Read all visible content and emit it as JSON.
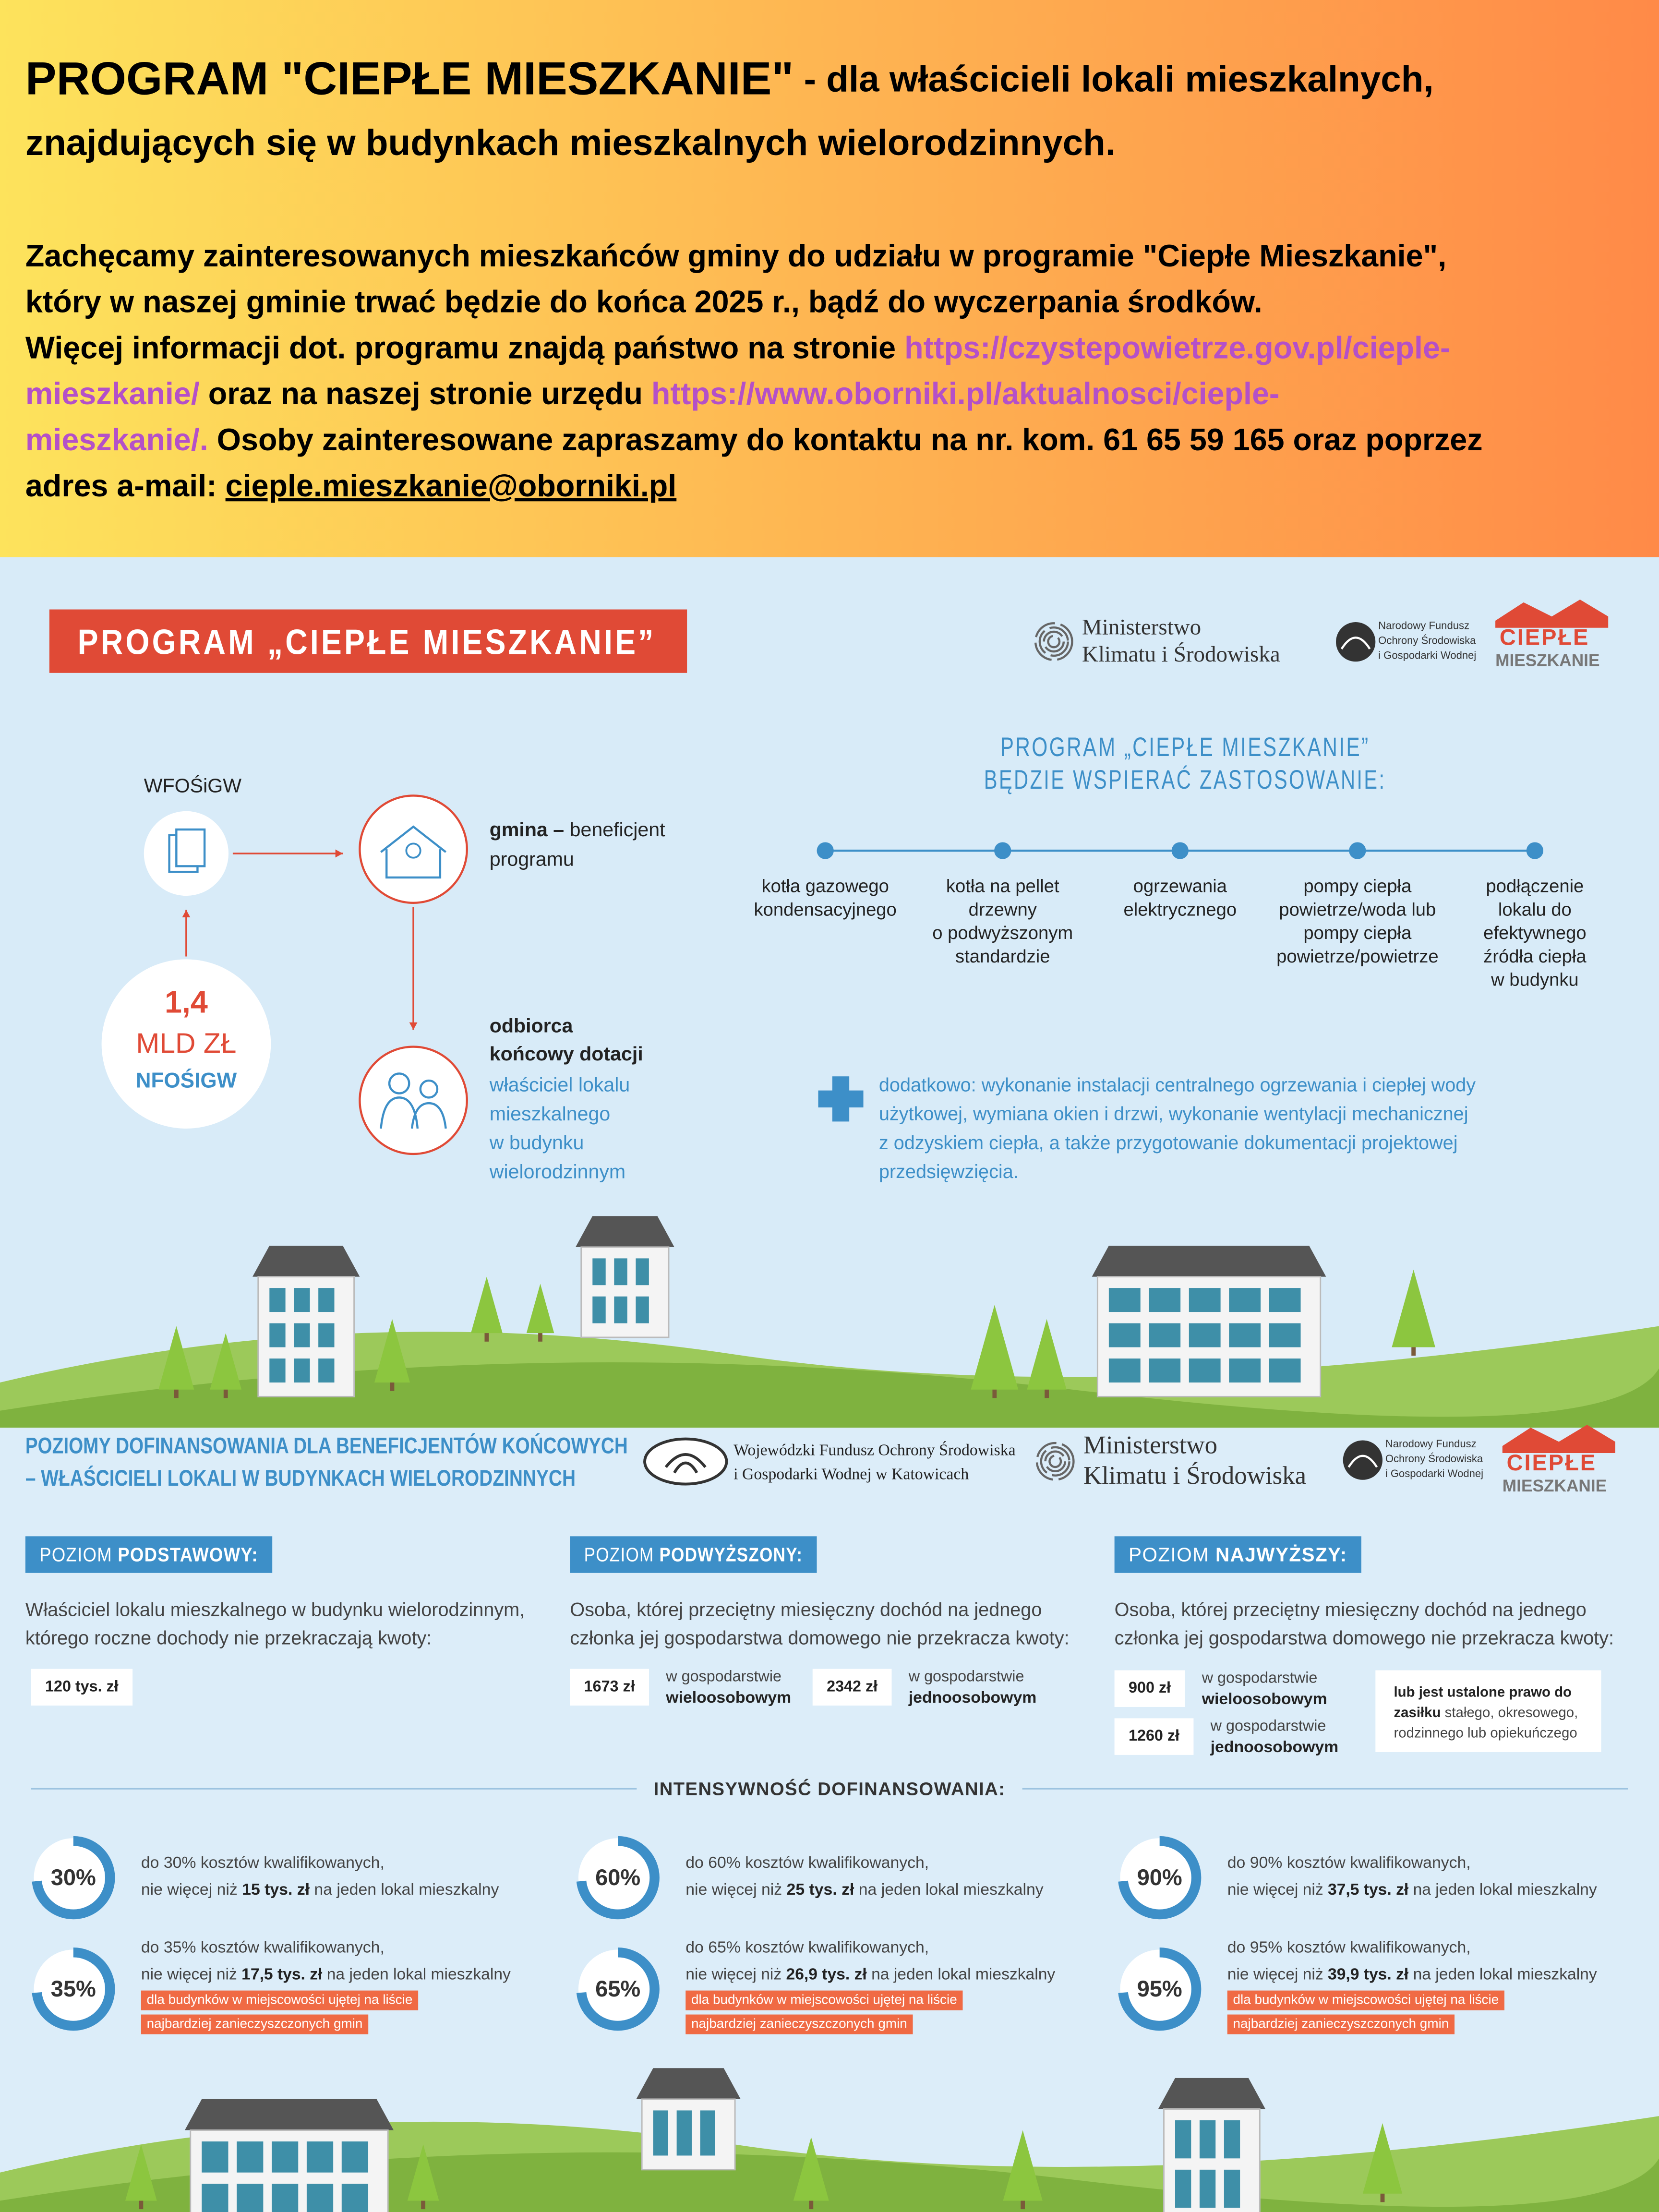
{
  "header": {
    "title": "PROGRAM \"CIEPŁE MIESZKANIE\"",
    "title_rest": " - dla właścicieli lokali mieszkalnych,",
    "title_line2": "znajdujących się w budynkach mieszkalnych wielorodzinnych."
  },
  "intro": [
    [
      {
        "text": "Zachęcamy zainteresowanych mieszkańców gminy do udziału w programie \"Ciepłe Mieszkanie\",",
        "kind": "plain"
      }
    ],
    [
      {
        "text": "który w naszej gminie trwać będzie do końca 2025 r., bądź do wyczerpania środków.",
        "kind": "plain"
      }
    ],
    [
      {
        "text": "Więcej informacji dot. programu znajdą państwo na stronie ",
        "kind": "plain"
      },
      {
        "text": "https://czystepowietrze.gov.pl/cieple-",
        "kind": "link"
      }
    ],
    [
      {
        "text": "mieszkanie/",
        "kind": "link"
      },
      {
        "text": " oraz na naszej stronie urzędu ",
        "kind": "plain"
      },
      {
        "text": "https://www.oborniki.pl/aktualnosci/cieple-",
        "kind": "link"
      }
    ],
    [
      {
        "text": "mieszkanie/.",
        "kind": "link"
      },
      {
        "text": " Osoby zainteresowane zapraszamy do kontaktu na nr. kom. 61 65 59 165 oraz poprzez",
        "kind": "plain"
      }
    ],
    [
      {
        "text": "adres a-mail: ",
        "kind": "plain"
      },
      {
        "text": "cieple.mieszkanie@oborniki.pl",
        "kind": "email"
      }
    ]
  ],
  "logos": {
    "ministry": [
      "Ministerstwo",
      "Klimatu i Środowiska"
    ],
    "nfos": [
      "Narodowy Fundusz",
      "Ochrony Środowiska",
      "i Gospodarki Wodnej"
    ],
    "program": [
      "CIEPŁE",
      "MIESZKANIE"
    ],
    "wfos": [
      "Wojewódzki Fundusz Ochrony Środowiska",
      "i Gospodarki Wodnej w Katowicach"
    ]
  },
  "scheme": {
    "banner": "PROGRAM „CIEPŁE MIESZKANIE”",
    "wfos": "WFOŚiGW",
    "amount": [
      "1,4",
      "MLD ZŁ",
      "NFOŚIGW"
    ],
    "gmina_bold": "gmina –",
    "gmina_rest": " beneficjent",
    "gmina_line2": "programu",
    "recipient_title": [
      "odbiorca",
      "końcowy dotacji"
    ],
    "recipient_text": [
      "właściciel lokalu",
      "mieszkalnego",
      "w budynku",
      "wielorodzinnym"
    ]
  },
  "support": {
    "heading": [
      "PROGRAM „CIEPŁE MIESZKANIE”",
      "BĘDZIE WSPIERAĆ ZASTOSOWANIE:"
    ],
    "items": [
      [
        "kotła gazowego",
        "kondensacyjnego"
      ],
      [
        "kotła na pellet",
        "drzewny",
        "o podwyższonym",
        "standardzie"
      ],
      [
        "ogrzewania",
        "elektrycznego"
      ],
      [
        "pompy ciepła",
        "powietrze/woda lub",
        "pompy ciepła",
        "powietrze/powietrze"
      ],
      [
        "podłączenie",
        "lokalu do",
        "efektywnego",
        "źródła ciepła",
        "w budynku"
      ]
    ],
    "extra": [
      "dodatkowo: wykonanie instalacji centralnego ogrzewania i ciepłej wody",
      "użytkowej, wymiana okien i drzwi, wykonanie wentylacji mechanicznej",
      "z odzyskiem ciepła, a także przygotowanie dokumentacji projektowej",
      "przedsięwzięcia."
    ]
  },
  "levels": {
    "heading": [
      "POZIOMY DOFINANSOWANIA DLA BENEFICJENTÓW KOŃCOWYCH",
      "– WŁAŚCICIELI LOKALI W BUDYNKACH WIELORODZINNYCH"
    ],
    "items": [
      {
        "prefix": "POZIOM ",
        "name": "PODSTAWOWY:",
        "description": [
          "Właściciel lokalu mieszkalnego w budynku wielorodzinnym,",
          "którego roczne dochody nie przekraczają kwoty:"
        ],
        "amounts": [
          {
            "amount": "120 tys. zł"
          }
        ]
      },
      {
        "prefix": "POZIOM ",
        "name": "PODWYŻSZONY:",
        "description": [
          "Osoba, której przeciętny miesięczny dochód na jednego",
          "członka jej gospodarstwa domowego nie przekracza kwoty:"
        ],
        "amounts": [
          {
            "amount": "1673 zł",
            "note": "w gospodarstwie",
            "note_bold": "wieloosobowym"
          },
          {
            "amount": "2342 zł",
            "note": "w gospodarstwie",
            "note_bold": "jednoosobowym"
          }
        ]
      },
      {
        "prefix": "POZIOM ",
        "name": "NAJWYŻSZY:",
        "description": [
          "Osoba, której przeciętny miesięczny dochód na jednego",
          "członka jej gospodarstwa domowego nie przekracza kwoty:"
        ],
        "amounts": [
          {
            "amount": "900 zł",
            "note": "w gospodarstwie",
            "note_bold": "wieloosobowym"
          },
          {
            "amount": "1260 zł",
            "note": "w gospodarstwie",
            "note_bold": "jednoosobowym"
          }
        ],
        "extra": [
          [
            {
              "text": "lub jest ustalone prawo do",
              "bold": true
            }
          ],
          [
            {
              "text": "zasiłku",
              "bold": true
            },
            {
              "text": " stałego, okresowego,",
              "bold": false
            }
          ],
          [
            {
              "text": "rodzinnego lub opiekuńczego",
              "bold": false
            }
          ]
        ]
      }
    ]
  },
  "intensity": {
    "heading": "INTENSYWNOŚĆ DOFINANSOWANIA:",
    "columns": [
      [
        {
          "percent": "30%",
          "line1": "do 30% kosztów kwalifikowanych,",
          "pre": "nie więcej niż ",
          "amount": "15 tys. zł",
          "post": " na jeden lokal mieszkalny"
        },
        {
          "percent": "35%",
          "line1": "do 35% kosztów kwalifikowanych,",
          "pre": "nie więcej niż ",
          "amount": "17,5 tys. zł",
          "post": " na jeden lokal mieszkalny",
          "tags": [
            "dla budynków w miejscowości ujętej na liście",
            "najbardziej zanieczyszczonych gmin"
          ]
        }
      ],
      [
        {
          "percent": "60%",
          "line1": "do 60% kosztów kwalifikowanych,",
          "pre": "nie więcej niż ",
          "amount": "25 tys. zł",
          "post": " na jeden lokal mieszkalny"
        },
        {
          "percent": "65%",
          "line1": "do 65% kosztów kwalifikowanych,",
          "pre": "nie więcej niż ",
          "amount": "26,9 tys. zł",
          "post": " na jeden lokal mieszkalny",
          "tags": [
            "dla budynków w miejscowości ujętej na liście",
            "najbardziej zanieczyszczonych gmin"
          ]
        }
      ],
      [
        {
          "percent": "90%",
          "line1": "do 90% kosztów kwalifikowanych,",
          "pre": "nie więcej niż ",
          "amount": "37,5 tys. zł",
          "post": " na jeden lokal mieszkalny"
        },
        {
          "percent": "95%",
          "line1": "do 95% kosztów kwalifikowanych,",
          "pre": "nie więcej niż ",
          "amount": "39,9 tys. zł",
          "post": " na jeden lokal mieszkalny",
          "tags": [
            "dla budynków w miejscowości ujętej na liście",
            "najbardziej zanieczyszczonych gmin"
          ]
        }
      ]
    ]
  }
}
